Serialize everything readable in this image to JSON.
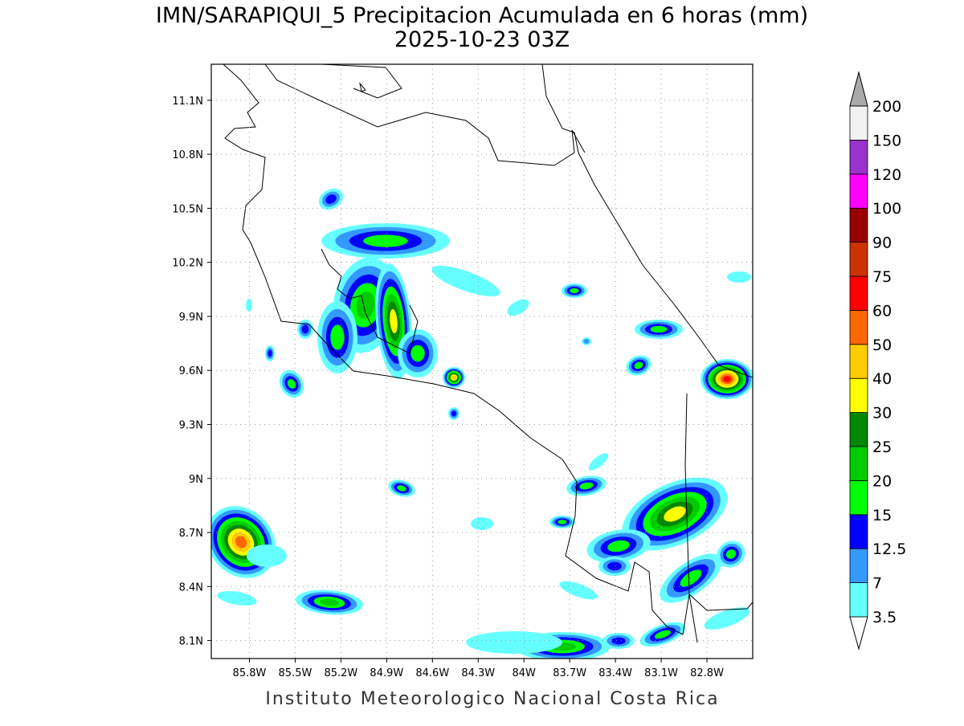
{
  "title": "IMN/SARAPIQUI_5 Precipitacion Acumulada en 6 horas (mm)",
  "subtitle": "2025-10-23 03Z",
  "footer": "Instituto Meteorologico Nacional Costa Rica",
  "map": {
    "xlim": [
      -86.05,
      -82.5
    ],
    "ylim": [
      8.0,
      11.3
    ],
    "xticks": [
      {
        "value": -85.8,
        "label": "85.8W"
      },
      {
        "value": -85.5,
        "label": "85.5W"
      },
      {
        "value": -85.2,
        "label": "85.2W"
      },
      {
        "value": -84.9,
        "label": "84.9W"
      },
      {
        "value": -84.6,
        "label": "84.6W"
      },
      {
        "value": -84.3,
        "label": "84.3W"
      },
      {
        "value": -84.0,
        "label": "84W"
      },
      {
        "value": -83.7,
        "label": "83.7W"
      },
      {
        "value": -83.4,
        "label": "83.4W"
      },
      {
        "value": -83.1,
        "label": "83.1W"
      },
      {
        "value": -82.8,
        "label": "82.8W"
      }
    ],
    "yticks": [
      {
        "value": 11.1,
        "label": "11.1N"
      },
      {
        "value": 10.8,
        "label": "10.8N"
      },
      {
        "value": 10.5,
        "label": "10.5N"
      },
      {
        "value": 10.2,
        "label": "10.2N"
      },
      {
        "value": 9.9,
        "label": "9.9N"
      },
      {
        "value": 9.6,
        "label": "9.6N"
      },
      {
        "value": 9.3,
        "label": "9.3N"
      },
      {
        "value": 9.0,
        "label": "9N"
      },
      {
        "value": 8.7,
        "label": "8.7N"
      },
      {
        "value": 8.4,
        "label": "8.4N"
      },
      {
        "value": 8.1,
        "label": "8.1N"
      }
    ],
    "grid": true
  },
  "colorbar": {
    "levels": [
      3.5,
      7,
      12.5,
      15,
      20,
      25,
      30,
      40,
      50,
      60,
      75,
      90,
      100,
      120,
      150,
      200
    ],
    "colors": [
      "#ffffff",
      "#66ffff",
      "#3399ff",
      "#0000ff",
      "#00ff00",
      "#00cc00",
      "#008800",
      "#ffff00",
      "#ffcc00",
      "#ff6600",
      "#ff0000",
      "#cc3300",
      "#990000",
      "#ff00ff",
      "#9933cc",
      "#f2f2f2",
      "#aaaaaa"
    ]
  }
}
